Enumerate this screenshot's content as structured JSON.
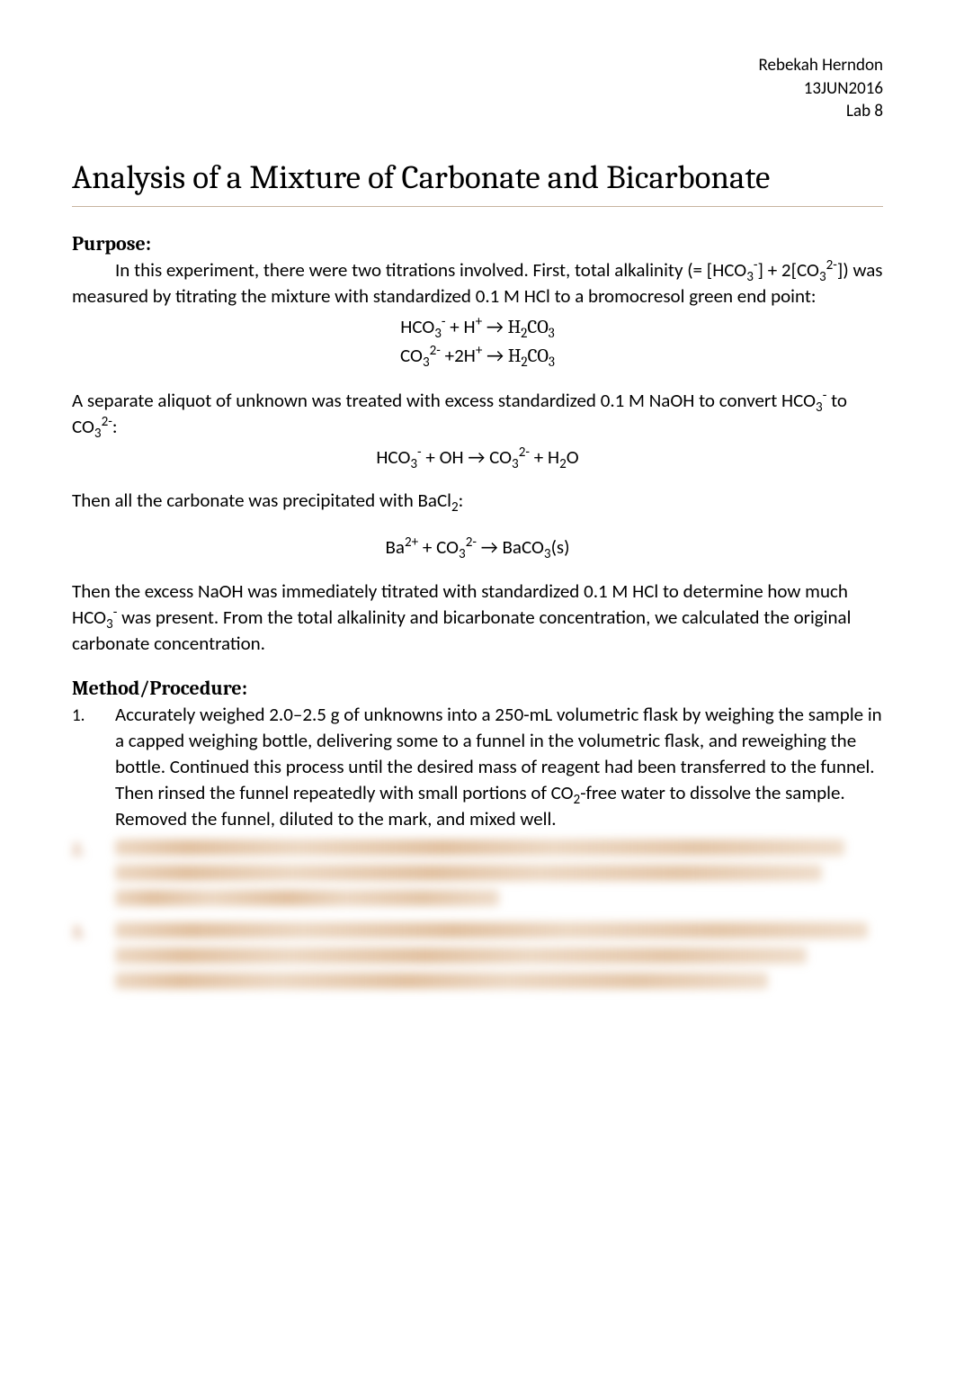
{
  "header": {
    "name": "Rebekah Herndon",
    "date": "13JUN2016",
    "lab": "Lab 8"
  },
  "title": "Analysis of a Mixture of Carbonate and Bicarbonate",
  "purpose": {
    "heading": "Purpose:",
    "p1_prefix": "In this experiment, there were two titrations involved. First, total alkalinity (= [HCO",
    "p1_mid1": "] + 2[CO",
    "p1_suffix": "]) was measured by titrating the mixture with standardized 0.1 M HCl to a bromocresol green end point:",
    "eq1_l1a": "HCO",
    "eq1_l1b": " + H",
    "eq1_l1c": " → ",
    "eq1_l1d": "H",
    "eq1_l1e": "CO",
    "eq1_l2a": "CO",
    "eq1_l2b": " +2H",
    "eq1_l2c": " → ",
    "eq1_l2d": "H",
    "eq1_l2e": "CO",
    "p2_a": "A separate aliquot of unknown was treated with excess standardized 0.1 M NaOH to convert HCO",
    "p2_b": " to CO",
    "p2_c": ":",
    "eq2_a": "HCO",
    "eq2_b": " + OH → CO",
    "eq2_c": " + H",
    "eq2_d": "O",
    "p3_a": "Then all the carbonate was precipitated with BaCl",
    "p3_b": ":",
    "eq3_a": "Ba",
    "eq3_b": " + CO",
    "eq3_c": " → BaCO",
    "eq3_d": "(s)",
    "p4_a": "Then the excess NaOH was immediately titrated with standardized 0.1 M HCl to determine how much HCO",
    "p4_b": " was present. From the total alkalinity and bicarbonate concentration, we calculated the original carbonate concentration."
  },
  "method": {
    "heading": "Method/Procedure:",
    "item1_num": "1.",
    "item1_a": "Accurately weighed 2.0–2.5 g of unknowns into a 250-mL volumetric flask by weighing the sample in a capped weighing bottle, delivering some to a funnel in the volumetric flask, and reweighing the bottle. Continued this process until the desired mass of reagent had been transferred to the funnel. Then rinsed the funnel repeatedly with small portions of CO",
    "item1_b": "-free water to dissolve the sample. Removed the funnel, diluted to the mark, and mixed well."
  }
}
